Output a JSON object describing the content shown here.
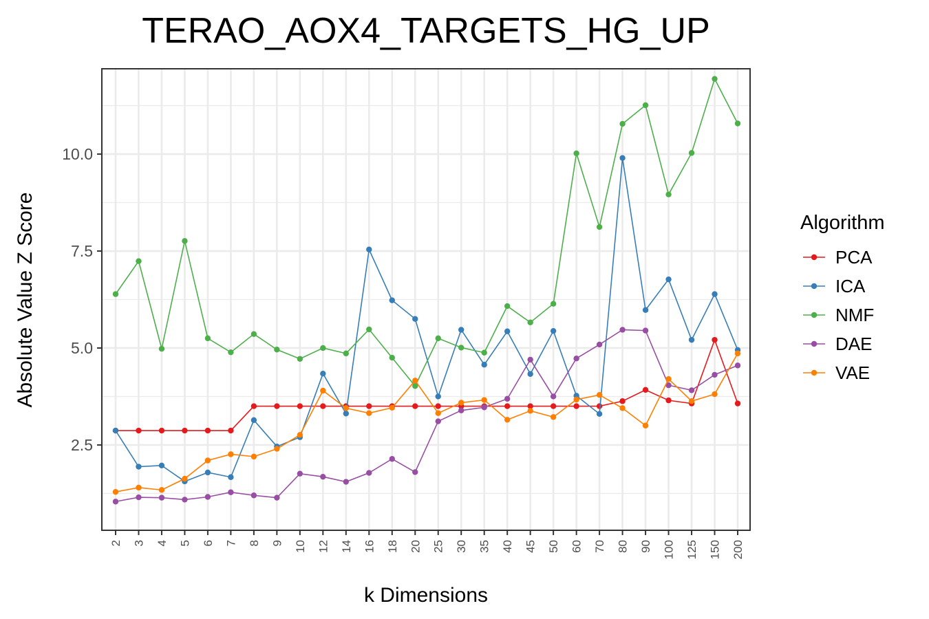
{
  "chart_data": {
    "type": "line",
    "title": "TERAO_AOX4_TARGETS_HG_UP",
    "xlabel": "k Dimensions",
    "ylabel": "Absolute Value Z Score",
    "categories": [
      "2",
      "3",
      "4",
      "5",
      "6",
      "7",
      "8",
      "9",
      "10",
      "12",
      "14",
      "16",
      "18",
      "20",
      "25",
      "30",
      "35",
      "40",
      "45",
      "50",
      "60",
      "70",
      "80",
      "90",
      "100",
      "125",
      "150",
      "200"
    ],
    "ylim": [
      0.3,
      12.2
    ],
    "yticks": [
      2.5,
      5.0,
      7.5,
      10.0
    ],
    "ytick_labels": [
      "2.5",
      "5.0",
      "7.5",
      "10.0"
    ],
    "grid": true,
    "legend_title": "Algorithm",
    "legend_position": "right",
    "series": [
      {
        "name": "PCA",
        "color": "#e41a1c",
        "values": [
          2.87,
          2.87,
          2.87,
          2.87,
          2.87,
          2.87,
          3.5,
          3.5,
          3.5,
          3.5,
          3.5,
          3.5,
          3.5,
          3.5,
          3.5,
          3.5,
          3.5,
          3.5,
          3.5,
          3.5,
          3.5,
          3.5,
          3.63,
          3.92,
          3.65,
          3.57,
          5.21,
          3.57
        ]
      },
      {
        "name": "ICA",
        "color": "#377eb8",
        "values": [
          2.87,
          1.94,
          1.97,
          1.56,
          1.79,
          1.67,
          3.14,
          2.46,
          2.7,
          4.34,
          3.31,
          7.54,
          6.23,
          5.75,
          3.75,
          5.47,
          4.57,
          5.43,
          4.33,
          5.44,
          3.77,
          3.3,
          9.9,
          5.98,
          6.77,
          5.21,
          6.39,
          4.95
        ]
      },
      {
        "name": "NMF",
        "color": "#4daf4a",
        "values": [
          6.39,
          7.24,
          4.98,
          7.76,
          5.25,
          4.89,
          5.36,
          4.96,
          4.72,
          5.0,
          4.86,
          5.48,
          4.75,
          4.02,
          5.25,
          5.01,
          4.88,
          6.08,
          5.66,
          6.14,
          10.02,
          8.12,
          10.78,
          11.26,
          8.96,
          10.03,
          11.94,
          10.79
        ]
      },
      {
        "name": "DAE",
        "color": "#984ea3",
        "values": [
          1.04,
          1.15,
          1.14,
          1.09,
          1.16,
          1.28,
          1.2,
          1.14,
          1.76,
          1.68,
          1.55,
          1.78,
          2.14,
          1.8,
          3.11,
          3.39,
          3.47,
          3.69,
          4.7,
          3.75,
          4.73,
          5.09,
          5.47,
          5.45,
          4.04,
          3.91,
          4.31,
          4.55
        ]
      },
      {
        "name": "VAE",
        "color": "#ff7f00",
        "values": [
          1.29,
          1.4,
          1.34,
          1.63,
          2.1,
          2.26,
          2.2,
          2.4,
          2.76,
          3.9,
          3.45,
          3.32,
          3.46,
          4.16,
          3.32,
          3.59,
          3.66,
          3.15,
          3.38,
          3.22,
          3.67,
          3.79,
          3.45,
          3.0,
          4.2,
          3.63,
          3.81,
          4.86
        ]
      }
    ]
  }
}
